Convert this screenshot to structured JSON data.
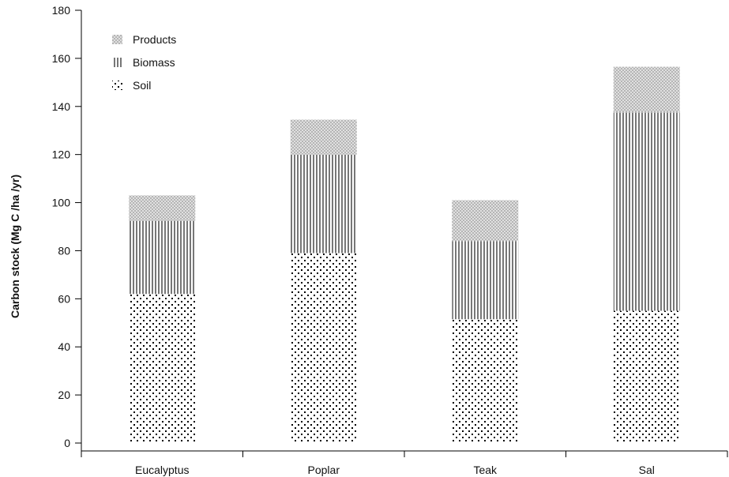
{
  "chart_data": {
    "type": "bar",
    "stacked": true,
    "categories": [
      "Eucalyptus",
      "Poplar",
      "Teak",
      "Sal"
    ],
    "series": [
      {
        "name": "Soil",
        "values": [
          62,
          79,
          51.5,
          55
        ],
        "pattern": "dots"
      },
      {
        "name": "Biomass",
        "values": [
          30.5,
          41,
          32.5,
          82.5
        ],
        "pattern": "vertical-lines"
      },
      {
        "name": "Products",
        "values": [
          10.5,
          14.5,
          17,
          19
        ],
        "pattern": "checker"
      }
    ],
    "ylabel": "Carbon stock (Mg C  /ha /yr)",
    "ylim": [
      0,
      180
    ],
    "yticks": [
      0,
      20,
      40,
      60,
      80,
      100,
      120,
      140,
      160,
      180
    ],
    "legend": {
      "position": "top-left",
      "order": [
        "Products",
        "Biomass",
        "Soil"
      ]
    },
    "grid": false
  }
}
